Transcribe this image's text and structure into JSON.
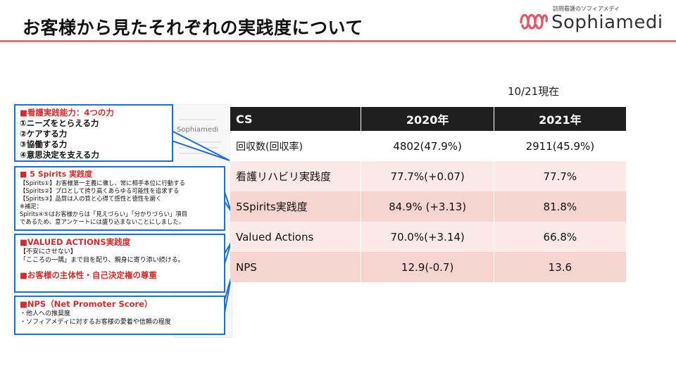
{
  "title": "お客様から見たそれぞれの実践度について",
  "brand": {
    "tagline": "訪問看護のソフィアメディ",
    "name": "Sophiamedi",
    "color": "#e0566a"
  },
  "as_of": "10/21現在",
  "background_doc": {
    "logo_text": "Sophiamedi"
  },
  "callouts": {
    "capability": {
      "heading": "■看護実践能力：4つの力",
      "lines": [
        "①ニーズをとらえる力",
        "②ケアする力",
        "③協働する力",
        "④意思決定を支える力"
      ]
    },
    "spirits": {
      "heading": "■ 5 Spirits 実践度",
      "lines": [
        "【Spirits①】お客様第一主義に徹し、常に相手本位に行動する",
        "【Spirits②】プロとして誇り高くあらゆる可能性を追求する",
        "【Spirits③】品質は人の質と心得て感性と徳性を磨く",
        "※補足：",
        "Spirits④⑤はお客様からは「見えづらい」「分かりづらい」項目",
        "であるため、意アンケートには盛り込まないことにしました。"
      ]
    },
    "valued": {
      "heading": "■VALUED ACTIONS実践度",
      "lines": [
        "【不安にさせない】",
        "「こころの一隅」まで目を配り、親身に寄り添い続ける。"
      ],
      "heading2": "■お客様の主体性・自己決定権の尊重"
    },
    "nps": {
      "heading": "■NPS（Net Promoter Score）",
      "lines": [
        "・他人への推奨度",
        "・ソフィアメディに対するお客様の愛着や信頼の程度"
      ]
    }
  },
  "table": {
    "header": {
      "label": "CS",
      "col1": "2020年",
      "col2": "2021年"
    },
    "rows": [
      {
        "label": "回収数(回収率)",
        "v2020": "4802(47.9%)",
        "v2021": "2911(45.9%)"
      },
      {
        "label": "看護リハビリ実践度",
        "v2020": "77.7%(+0.07)",
        "v2021": "77.7%"
      },
      {
        "label": "5Spirits実践度",
        "v2020": "84.9% (+3.13)",
        "v2021": "81.8%"
      },
      {
        "label": "Valued Actions",
        "v2020": "70.0%(+3.14)",
        "v2021": "66.8%"
      },
      {
        "label": "NPS",
        "v2020": "12.9(-0.7)",
        "v2021": "13.6"
      }
    ]
  }
}
